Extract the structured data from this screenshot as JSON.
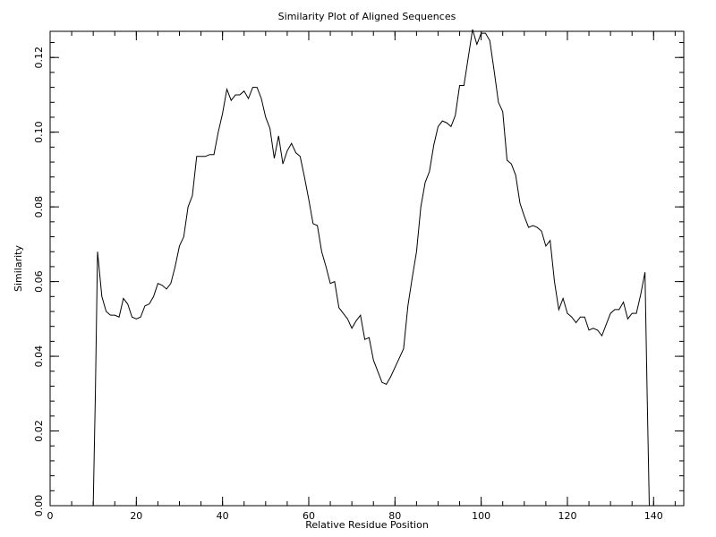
{
  "chart_data": {
    "type": "line",
    "title": "Similarity Plot of Aligned Sequences",
    "xlabel": "Relative Residue Position",
    "ylabel": "Similarity",
    "xlim": [
      0,
      147
    ],
    "ylim": [
      0,
      0.127
    ],
    "xticks": [
      0,
      20,
      40,
      60,
      80,
      100,
      120,
      140
    ],
    "xtick_labels": [
      "0",
      "20",
      "40",
      "60",
      "80",
      "100",
      "120",
      "140"
    ],
    "xminor_step": 5,
    "yticks": [
      0.0,
      0.02,
      0.04,
      0.06,
      0.08,
      0.1,
      0.12
    ],
    "ytick_labels": [
      "0.00",
      "0.02",
      "0.04",
      "0.06",
      "0.08",
      "0.10",
      "0.12"
    ],
    "yminor_step": 0.004,
    "grid": false,
    "line_color": "#000000",
    "series": [
      {
        "x": [
          10,
          10.5,
          11,
          12,
          13,
          14,
          15,
          16,
          17,
          18,
          19,
          20,
          21,
          22,
          23,
          24,
          25,
          26,
          27,
          28,
          29,
          30,
          31,
          32,
          33,
          34,
          35,
          36,
          37,
          38,
          39,
          40,
          41,
          42,
          43,
          44,
          45,
          46,
          47,
          48,
          49,
          50,
          51,
          52,
          53,
          54,
          55,
          56,
          57,
          58,
          59,
          60,
          61,
          62,
          63,
          64,
          65,
          66,
          67,
          68,
          69,
          70,
          71,
          72,
          73,
          74,
          75,
          76,
          77,
          78,
          79,
          80,
          81,
          82,
          83,
          84,
          85,
          86,
          87,
          88,
          89,
          90,
          91,
          92,
          93,
          94,
          95,
          96,
          97,
          98,
          99,
          100,
          101,
          102,
          103,
          104,
          105,
          106,
          107,
          108,
          109,
          110,
          111,
          112,
          113,
          114,
          115,
          116,
          117,
          118,
          119,
          120,
          121,
          122,
          123,
          124,
          125,
          126,
          127,
          128,
          129,
          130,
          131,
          132,
          133,
          134,
          135,
          136,
          137,
          138,
          138.5,
          139
        ],
        "y": [
          0.0,
          0.03,
          0.068,
          0.056,
          0.052,
          0.051,
          0.051,
          0.0505,
          0.0555,
          0.054,
          0.0505,
          0.05,
          0.0505,
          0.0535,
          0.054,
          0.056,
          0.0595,
          0.059,
          0.058,
          0.0595,
          0.064,
          0.0695,
          0.072,
          0.08,
          0.083,
          0.0935,
          0.0935,
          0.0935,
          0.094,
          0.094,
          0.1,
          0.105,
          0.1115,
          0.1085,
          0.11,
          0.11,
          0.111,
          0.109,
          0.112,
          0.112,
          0.109,
          0.104,
          0.101,
          0.093,
          0.099,
          0.0915,
          0.095,
          0.097,
          0.0945,
          0.0935,
          0.088,
          0.082,
          0.0755,
          0.075,
          0.068,
          0.064,
          0.0595,
          0.06,
          0.053,
          0.0515,
          0.05,
          0.0475,
          0.0495,
          0.051,
          0.0445,
          0.045,
          0.039,
          0.036,
          0.033,
          0.0325,
          0.0345,
          0.037,
          0.0395,
          0.042,
          0.0535,
          0.061,
          0.068,
          0.08,
          0.0865,
          0.0895,
          0.0965,
          0.1015,
          0.103,
          0.1025,
          0.1015,
          0.1045,
          0.1125,
          0.1125,
          0.12,
          0.1275,
          0.1235,
          0.1265,
          0.1265,
          0.1245,
          0.1165,
          0.108,
          0.1055,
          0.0925,
          0.0915,
          0.0885,
          0.081,
          0.0775,
          0.0745,
          0.075,
          0.0745,
          0.0735,
          0.0695,
          0.071,
          0.06,
          0.0525,
          0.0555,
          0.0515,
          0.0505,
          0.049,
          0.0505,
          0.0505,
          0.047,
          0.0475,
          0.047,
          0.0455,
          0.0485,
          0.0515,
          0.0525,
          0.0525,
          0.0545,
          0.05,
          0.0515,
          0.0515,
          0.0565,
          0.0625,
          0.03,
          0.0
        ]
      }
    ]
  }
}
